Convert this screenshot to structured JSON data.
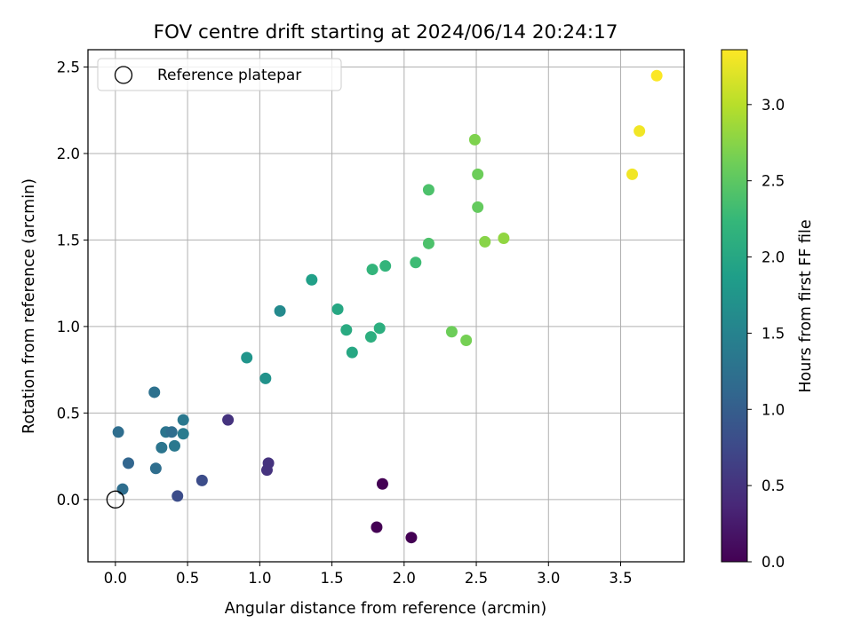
{
  "chart_data": {
    "type": "scatter",
    "title": "FOV centre drift starting at 2024/06/14 20:24:17",
    "xlabel": "Angular distance from reference (arcmin)",
    "ylabel": "Rotation from reference (arcmin)",
    "colorbar_label": "Hours from first FF file",
    "xlim": [
      -0.19,
      3.94
    ],
    "ylim": [
      -0.36,
      2.6
    ],
    "clim": [
      0.0,
      3.36
    ],
    "grid": true,
    "legend_position": "top-left",
    "x_ticks": [
      0.0,
      0.5,
      1.0,
      1.5,
      2.0,
      2.5,
      3.0,
      3.5
    ],
    "x_tick_labels": [
      "0.0",
      "0.5",
      "1.0",
      "1.5",
      "2.0",
      "2.5",
      "3.0",
      "3.5"
    ],
    "y_ticks": [
      0.0,
      0.5,
      1.0,
      1.5,
      2.0,
      2.5
    ],
    "y_tick_labels": [
      "0.0",
      "0.5",
      "1.0",
      "1.5",
      "2.0",
      "2.5"
    ],
    "cbar_ticks": [
      0.0,
      0.5,
      1.0,
      1.5,
      2.0,
      2.5,
      3.0
    ],
    "cbar_tick_labels": [
      "0.0",
      "0.5",
      "1.0",
      "1.5",
      "2.0",
      "2.5",
      "3.0"
    ],
    "reference": {
      "label": "Reference platepar",
      "x": 0.0,
      "y": 0.0
    },
    "points": [
      {
        "x": 1.85,
        "y": 0.09,
        "hours": 0.0
      },
      {
        "x": 1.81,
        "y": -0.16,
        "hours": 0.0
      },
      {
        "x": 2.05,
        "y": -0.22,
        "hours": 0.0
      },
      {
        "x": 1.06,
        "y": 0.21,
        "hours": 0.5
      },
      {
        "x": 1.05,
        "y": 0.17,
        "hours": 0.5
      },
      {
        "x": 0.78,
        "y": 0.46,
        "hours": 0.5
      },
      {
        "x": 0.6,
        "y": 0.11,
        "hours": 0.8
      },
      {
        "x": 0.43,
        "y": 0.02,
        "hours": 0.8
      },
      {
        "x": 0.09,
        "y": 0.21,
        "hours": 1.1
      },
      {
        "x": 0.05,
        "y": 0.06,
        "hours": 1.2
      },
      {
        "x": 0.02,
        "y": 0.39,
        "hours": 1.2
      },
      {
        "x": 0.28,
        "y": 0.18,
        "hours": 1.2
      },
      {
        "x": 0.27,
        "y": 0.62,
        "hours": 1.25
      },
      {
        "x": 0.32,
        "y": 0.3,
        "hours": 1.3
      },
      {
        "x": 0.35,
        "y": 0.39,
        "hours": 1.3
      },
      {
        "x": 0.39,
        "y": 0.39,
        "hours": 1.2
      },
      {
        "x": 0.41,
        "y": 0.31,
        "hours": 1.35
      },
      {
        "x": 0.47,
        "y": 0.46,
        "hours": 1.35
      },
      {
        "x": 0.47,
        "y": 0.38,
        "hours": 1.4
      },
      {
        "x": 0.91,
        "y": 0.82,
        "hours": 1.75
      },
      {
        "x": 1.04,
        "y": 0.7,
        "hours": 1.7
      },
      {
        "x": 1.14,
        "y": 1.09,
        "hours": 1.6
      },
      {
        "x": 1.36,
        "y": 1.27,
        "hours": 1.9
      },
      {
        "x": 1.54,
        "y": 1.1,
        "hours": 2.0
      },
      {
        "x": 1.6,
        "y": 0.98,
        "hours": 2.05
      },
      {
        "x": 1.64,
        "y": 0.85,
        "hours": 2.0
      },
      {
        "x": 1.77,
        "y": 0.94,
        "hours": 2.1
      },
      {
        "x": 1.83,
        "y": 0.99,
        "hours": 2.1
      },
      {
        "x": 1.78,
        "y": 1.33,
        "hours": 2.2
      },
      {
        "x": 1.87,
        "y": 1.35,
        "hours": 2.2
      },
      {
        "x": 2.08,
        "y": 1.37,
        "hours": 2.3
      },
      {
        "x": 2.17,
        "y": 1.48,
        "hours": 2.4
      },
      {
        "x": 2.17,
        "y": 1.79,
        "hours": 2.4
      },
      {
        "x": 2.33,
        "y": 0.97,
        "hours": 2.6
      },
      {
        "x": 2.43,
        "y": 0.92,
        "hours": 2.65
      },
      {
        "x": 2.49,
        "y": 2.08,
        "hours": 2.7
      },
      {
        "x": 2.51,
        "y": 1.88,
        "hours": 2.6
      },
      {
        "x": 2.51,
        "y": 1.69,
        "hours": 2.55
      },
      {
        "x": 2.56,
        "y": 1.49,
        "hours": 2.75
      },
      {
        "x": 2.69,
        "y": 1.51,
        "hours": 2.8
      },
      {
        "x": 3.58,
        "y": 1.88,
        "hours": 3.3
      },
      {
        "x": 3.63,
        "y": 2.13,
        "hours": 3.3
      },
      {
        "x": 3.75,
        "y": 2.45,
        "hours": 3.35
      }
    ],
    "colormap": [
      "#440154",
      "#482878",
      "#3e4989",
      "#31688e",
      "#26828e",
      "#1f9e89",
      "#35b779",
      "#6ece58",
      "#b5de2b",
      "#fde725"
    ]
  }
}
